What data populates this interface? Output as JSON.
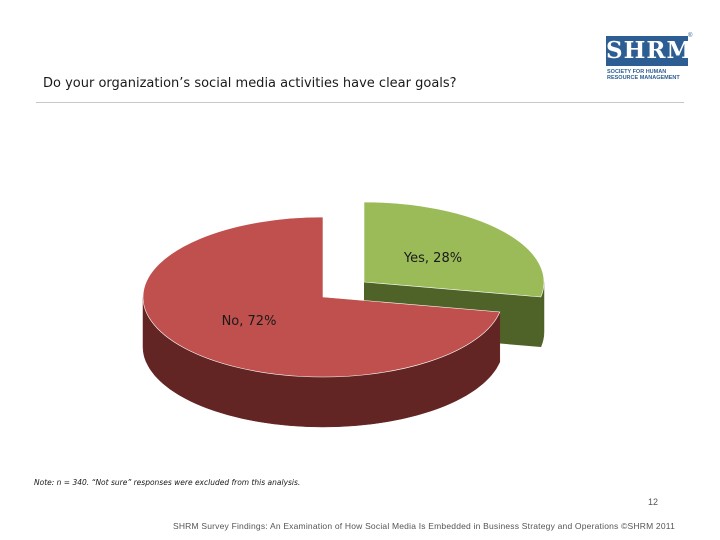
{
  "slide": {
    "question": "Do your organization’s social media activities have clear goals?",
    "note": "Note: n = 340. “Not sure” responses were excluded from this analysis.",
    "page_number": "12",
    "footer": "SHRM Survey Findings: An Examination of How Social Media Is Embedded in Business Strategy and Operations ©SHRM 2011"
  },
  "logo": {
    "wordmark": "SHRM",
    "registered": "®",
    "tagline_line1": "SOCIETY FOR HUMAN",
    "tagline_line2": "RESOURCE MANAGEMENT",
    "color": "#2c5d93"
  },
  "chart_data": {
    "type": "pie",
    "style": "3d-exploded",
    "title": "Do your organization’s social media activities have clear goals?",
    "slices": [
      {
        "name": "Yes",
        "value": 28,
        "label": "Yes, 28%",
        "color": "#9bbb59",
        "side_color": "#4f6228"
      },
      {
        "name": "No",
        "value": 72,
        "label": "No, 72%",
        "color": "#c0504d",
        "side_color": "#632523"
      }
    ]
  }
}
